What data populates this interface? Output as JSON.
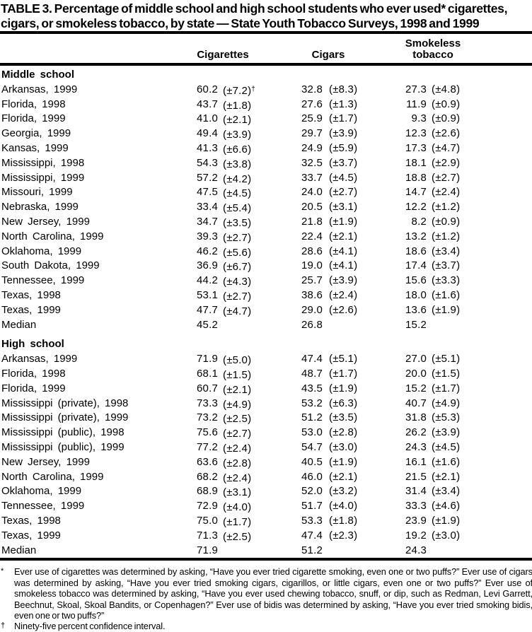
{
  "title": {
    "line1": "TABLE 3. Percentage of middle school and high school students who ever used* cigarettes,",
    "line2": "cigars, or smokeless tobacco, by state — State Youth Tobacco Surveys, 1998 and 1999"
  },
  "columns": {
    "cigarettes": "Cigarettes",
    "cigars": "Cigars",
    "smokeless_line1": "Smokeless",
    "smokeless_line2": "tobacco"
  },
  "sections": [
    {
      "name": "Middle school",
      "rows": [
        {
          "state": "Arkansas, 1999",
          "cig": "60.2",
          "cig_ci": "(±7.2)",
          "cig_sup": "†",
          "cigar": "32.8",
          "cigar_ci": "(±8.3)",
          "smokeless": "27.3",
          "smokeless_ci": "(±4.8)"
        },
        {
          "state": "Florida, 1998",
          "cig": "43.7",
          "cig_ci": "(±1.8)",
          "cigar": "27.6",
          "cigar_ci": "(±1.3)",
          "smokeless": "11.9",
          "smokeless_ci": "(±0.9)"
        },
        {
          "state": "Florida, 1999",
          "cig": "41.0",
          "cig_ci": "(±2.1)",
          "cigar": "25.9",
          "cigar_ci": "(±1.7)",
          "smokeless": "9.3",
          "smokeless_ci": "(±0.9)"
        },
        {
          "state": "Georgia, 1999",
          "cig": "49.4",
          "cig_ci": "(±3.9)",
          "cigar": "29.7",
          "cigar_ci": "(±3.9)",
          "smokeless": "12.3",
          "smokeless_ci": "(±2.6)"
        },
        {
          "state": "Kansas, 1999",
          "cig": "41.3",
          "cig_ci": "(±6.6)",
          "cigar": "24.9",
          "cigar_ci": "(±5.9)",
          "smokeless": "17.3",
          "smokeless_ci": "(±4.7)"
        },
        {
          "state": "Mississippi, 1998",
          "cig": "54.3",
          "cig_ci": "(±3.8)",
          "cigar": "32.5",
          "cigar_ci": "(±3.7)",
          "smokeless": "18.1",
          "smokeless_ci": "(±2.9)"
        },
        {
          "state": "Mississippi, 1999",
          "cig": "57.2",
          "cig_ci": "(±4.2)",
          "cigar": "33.7",
          "cigar_ci": "(±4.5)",
          "smokeless": "18.8",
          "smokeless_ci": "(±2.7)"
        },
        {
          "state": "Missouri, 1999",
          "cig": "47.5",
          "cig_ci": "(±4.5)",
          "cigar": "24.0",
          "cigar_ci": "(±2.7)",
          "smokeless": "14.7",
          "smokeless_ci": "(±2.4)"
        },
        {
          "state": "Nebraska, 1999",
          "cig": "33.4",
          "cig_ci": "(±5.4)",
          "cigar": "20.5",
          "cigar_ci": "(±3.1)",
          "smokeless": "12.2",
          "smokeless_ci": "(±1.2)"
        },
        {
          "state": "New Jersey, 1999",
          "cig": "34.7",
          "cig_ci": "(±3.5)",
          "cigar": "21.8",
          "cigar_ci": "(±1.9)",
          "smokeless": "8.2",
          "smokeless_ci": "(±0.9)"
        },
        {
          "state": "North Carolina, 1999",
          "cig": "39.3",
          "cig_ci": "(±2.7)",
          "cigar": "22.4",
          "cigar_ci": "(±2.1)",
          "smokeless": "13.2",
          "smokeless_ci": "(±1.2)"
        },
        {
          "state": "Oklahoma, 1999",
          "cig": "46.2",
          "cig_ci": "(±5.6)",
          "cigar": "28.6",
          "cigar_ci": "(±4.1)",
          "smokeless": "18.6",
          "smokeless_ci": "(±3.4)"
        },
        {
          "state": "South Dakota, 1999",
          "cig": "36.9",
          "cig_ci": "(±6.7)",
          "cigar": "19.0",
          "cigar_ci": "(±4.1)",
          "smokeless": "17.4",
          "smokeless_ci": "(±3.7)"
        },
        {
          "state": "Tennessee, 1999",
          "cig": "44.2",
          "cig_ci": "(±4.3)",
          "cigar": "25.7",
          "cigar_ci": "(±3.9)",
          "smokeless": "15.6",
          "smokeless_ci": "(±3.3)"
        },
        {
          "state": "Texas, 1998",
          "cig": "53.1",
          "cig_ci": "(±2.7)",
          "cigar": "38.6",
          "cigar_ci": "(±2.4)",
          "smokeless": "18.0",
          "smokeless_ci": "(±1.6)"
        },
        {
          "state": "Texas, 1999",
          "cig": "47.7",
          "cig_ci": "(±4.7)",
          "cigar": "29.0",
          "cigar_ci": "(±2.6)",
          "smokeless": "13.6",
          "smokeless_ci": "(±1.9)"
        },
        {
          "state": "Median",
          "cig": "45.2",
          "cigar": "26.8",
          "smokeless": "15.2"
        }
      ]
    },
    {
      "name": "High school",
      "rows": [
        {
          "state": "Arkansas, 1999",
          "cig": "71.9",
          "cig_ci": "(±5.0)",
          "cigar": "47.4",
          "cigar_ci": "(±5.1)",
          "smokeless": "27.0",
          "smokeless_ci": "(±5.1)"
        },
        {
          "state": "Florida, 1998",
          "cig": "68.1",
          "cig_ci": "(±1.5)",
          "cigar": "48.7",
          "cigar_ci": "(±1.7)",
          "smokeless": "20.0",
          "smokeless_ci": "(±1.5)"
        },
        {
          "state": "Florida, 1999",
          "cig": "60.7",
          "cig_ci": "(±2.1)",
          "cigar": "43.5",
          "cigar_ci": "(±1.9)",
          "smokeless": "15.2",
          "smokeless_ci": "(±1.7)"
        },
        {
          "state": "Mississippi (private), 1998",
          "cig": "73.3",
          "cig_ci": "(±4.9)",
          "cigar": "53.2",
          "cigar_ci": "(±6.3)",
          "smokeless": "40.7",
          "smokeless_ci": "(±4.9)"
        },
        {
          "state": "Mississippi (private), 1999",
          "cig": "73.2",
          "cig_ci": "(±2.5)",
          "cigar": "51.2",
          "cigar_ci": "(±3.5)",
          "smokeless": "31.8",
          "smokeless_ci": "(±5.3)"
        },
        {
          "state": "Mississippi (public), 1998",
          "cig": "75.6",
          "cig_ci": "(±2.7)",
          "cigar": "53.0",
          "cigar_ci": "(±2.8)",
          "smokeless": "26.2",
          "smokeless_ci": "(±3.9)"
        },
        {
          "state": "Mississippi (public), 1999",
          "cig": "77.2",
          "cig_ci": "(±2.4)",
          "cigar": "54.7",
          "cigar_ci": "(±3.0)",
          "smokeless": "24.3",
          "smokeless_ci": "(±4.5)"
        },
        {
          "state": "New Jersey, 1999",
          "cig": "63.6",
          "cig_ci": "(±2.8)",
          "cigar": "40.5",
          "cigar_ci": "(±1.9)",
          "smokeless": "16.1",
          "smokeless_ci": "(±1.6)"
        },
        {
          "state": "North Carolina, 1999",
          "cig": "68.2",
          "cig_ci": "(±2.4)",
          "cigar": "46.0",
          "cigar_ci": "(±2.1)",
          "smokeless": "21.5",
          "smokeless_ci": "(±2.1)"
        },
        {
          "state": "Oklahoma, 1999",
          "cig": "68.9",
          "cig_ci": "(±3.1)",
          "cigar": "52.0",
          "cigar_ci": "(±3.2)",
          "smokeless": "31.4",
          "smokeless_ci": "(±3.4)"
        },
        {
          "state": "Tennessee, 1999",
          "cig": "72.9",
          "cig_ci": "(±4.0)",
          "cigar": "51.7",
          "cigar_ci": "(±4.0)",
          "smokeless": "33.3",
          "smokeless_ci": "(±4.6)"
        },
        {
          "state": "Texas, 1998",
          "cig": "75.0",
          "cig_ci": "(±1.7)",
          "cigar": "53.3",
          "cigar_ci": "(±1.8)",
          "smokeless": "23.9",
          "smokeless_ci": "(±1.9)"
        },
        {
          "state": "Texas, 1999",
          "cig": "71.3",
          "cig_ci": "(±2.5)",
          "cigar": "47.4",
          "cigar_ci": "(±2.3)",
          "smokeless": "19.2",
          "smokeless_ci": "(±3.0)"
        },
        {
          "state": "Median",
          "cig": "71.9",
          "cigar": "51.2",
          "smokeless": "24.3"
        }
      ]
    }
  ],
  "footnotes": [
    {
      "marker": "*",
      "text": "Ever use of cigarettes was determined by asking, “Have you ever tried cigarette smoking, even one or two puffs?” Ever use of cigars was determined by asking, “Have you ever tried smoking cigars, cigarillos, or little cigars, even one or two puffs?” Ever use of smokeless tobacco was determined by asking, “Have you ever used chewing tobacco, snuff, or dip, such as Redman, Levi Garrett, Beechnut, Skoal, Skoal Bandits, or Copenhagen?” Ever use of bidis was determined by asking, “Have you ever tried smoking bidis, even one or two puffs?”"
    },
    {
      "marker": "†",
      "text": "Ninety-five percent confidence interval."
    }
  ]
}
